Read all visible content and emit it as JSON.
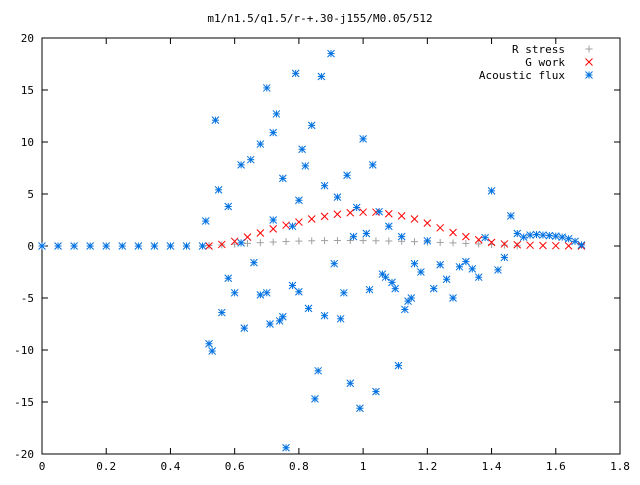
{
  "chart_data": {
    "type": "scatter",
    "title": "m1/n1.5/q1.5/r-+.30-j155/M0.05/512",
    "xlabel": "",
    "ylabel": "",
    "xlim": [
      0,
      1.8
    ],
    "ylim": [
      -20,
      20
    ],
    "xticks": [
      0,
      0.2,
      0.4,
      0.6,
      0.8,
      1,
      1.2,
      1.4,
      1.6,
      1.8
    ],
    "xtick_labels": [
      "0",
      "0.2",
      "0.4",
      "0.6",
      "0.8",
      "1",
      "1.2",
      "1.4",
      "1.6",
      "1.8"
    ],
    "yticks": [
      -20,
      -15,
      -10,
      -5,
      0,
      5,
      10,
      15,
      20
    ],
    "ytick_labels": [
      "-20",
      "-15",
      "-10",
      "-5",
      "0",
      "5",
      "10",
      "15",
      "20"
    ],
    "grid": false,
    "legend_position": "top-right",
    "series": [
      {
        "name": "R stress",
        "marker": "plus",
        "color": "#a0a0a0",
        "x": [
          0.52,
          0.56,
          0.6,
          0.64,
          0.68,
          0.72,
          0.76,
          0.8,
          0.84,
          0.88,
          0.92,
          0.96,
          1.0,
          1.04,
          1.08,
          1.12,
          1.16,
          1.2,
          1.24,
          1.28,
          1.32,
          1.36,
          1.4,
          1.44,
          1.48
        ],
        "y": [
          0.05,
          0.1,
          0.18,
          0.25,
          0.32,
          0.38,
          0.43,
          0.47,
          0.5,
          0.52,
          0.53,
          0.53,
          0.52,
          0.5,
          0.48,
          0.45,
          0.42,
          0.38,
          0.34,
          0.3,
          0.25,
          0.2,
          0.14,
          0.08,
          0.02
        ]
      },
      {
        "name": "G work",
        "marker": "cross",
        "color": "#ff0000",
        "x": [
          0.52,
          0.56,
          0.6,
          0.64,
          0.68,
          0.72,
          0.76,
          0.8,
          0.84,
          0.88,
          0.92,
          0.96,
          1.0,
          1.04,
          1.08,
          1.12,
          1.16,
          1.2,
          1.24,
          1.28,
          1.32,
          1.36,
          1.4,
          1.44,
          1.48,
          1.52,
          1.56,
          1.6,
          1.64,
          1.68
        ],
        "y": [
          0.0,
          0.15,
          0.45,
          0.85,
          1.25,
          1.65,
          2.0,
          2.3,
          2.6,
          2.85,
          3.05,
          3.2,
          3.25,
          3.25,
          3.1,
          2.9,
          2.6,
          2.2,
          1.75,
          1.3,
          0.9,
          0.6,
          0.35,
          0.2,
          0.12,
          0.08,
          0.05,
          0.03,
          0.01,
          0.0
        ]
      },
      {
        "name": "Acoustic flux",
        "marker": "star",
        "color": "#0070e0",
        "x": [
          0.0,
          0.05,
          0.1,
          0.15,
          0.2,
          0.25,
          0.3,
          0.35,
          0.4,
          0.45,
          0.5,
          0.51,
          0.52,
          0.53,
          0.54,
          0.55,
          0.56,
          0.58,
          0.58,
          0.6,
          0.62,
          0.62,
          0.63,
          0.65,
          0.66,
          0.68,
          0.68,
          0.7,
          0.7,
          0.71,
          0.72,
          0.72,
          0.73,
          0.74,
          0.75,
          0.75,
          0.76,
          0.78,
          0.78,
          0.79,
          0.8,
          0.8,
          0.81,
          0.82,
          0.83,
          0.84,
          0.85,
          0.86,
          0.87,
          0.88,
          0.88,
          0.9,
          0.91,
          0.92,
          0.93,
          0.94,
          0.95,
          0.96,
          0.97,
          0.98,
          0.99,
          1.0,
          1.01,
          1.02,
          1.03,
          1.04,
          1.05,
          1.06,
          1.07,
          1.08,
          1.09,
          1.1,
          1.11,
          1.12,
          1.13,
          1.14,
          1.15,
          1.16,
          1.18,
          1.2,
          1.22,
          1.24,
          1.26,
          1.28,
          1.3,
          1.32,
          1.34,
          1.36,
          1.38,
          1.4,
          1.42,
          1.44,
          1.46,
          1.48,
          1.5,
          1.52,
          1.54,
          1.56,
          1.58,
          1.6,
          1.62,
          1.64,
          1.66,
          1.68
        ],
        "y": [
          0.0,
          0.0,
          0.0,
          0.0,
          0.0,
          0.0,
          0.0,
          0.0,
          0.0,
          0.0,
          0.0,
          2.4,
          -9.4,
          -10.1,
          12.1,
          5.4,
          -6.4,
          3.8,
          -3.1,
          -4.5,
          7.8,
          0.3,
          -7.9,
          8.3,
          -1.6,
          -4.7,
          9.8,
          15.2,
          -4.5,
          -7.5,
          2.5,
          10.9,
          12.7,
          -7.2,
          -6.8,
          6.5,
          -19.4,
          1.9,
          -3.8,
          16.6,
          -4.4,
          4.4,
          9.3,
          7.7,
          -6.0,
          11.6,
          -14.7,
          -12.0,
          16.3,
          5.8,
          -6.7,
          18.5,
          -1.7,
          4.7,
          -7.0,
          -4.5,
          6.8,
          -13.2,
          0.9,
          3.7,
          -15.6,
          10.3,
          1.2,
          -4.2,
          7.8,
          -14.0,
          3.3,
          -2.7,
          -3.0,
          1.9,
          -3.5,
          -4.1,
          -11.5,
          0.9,
          -6.1,
          -5.3,
          -5.0,
          -1.7,
          -2.5,
          0.5,
          -4.1,
          -1.8,
          -3.2,
          -5.0,
          -2.0,
          -1.5,
          -2.2,
          -3.0,
          0.8,
          5.3,
          -2.3,
          -1.1,
          2.9,
          1.2,
          0.85,
          1.05,
          1.1,
          1.05,
          1.0,
          0.95,
          0.85,
          0.7,
          0.45,
          0.1
        ]
      }
    ]
  }
}
